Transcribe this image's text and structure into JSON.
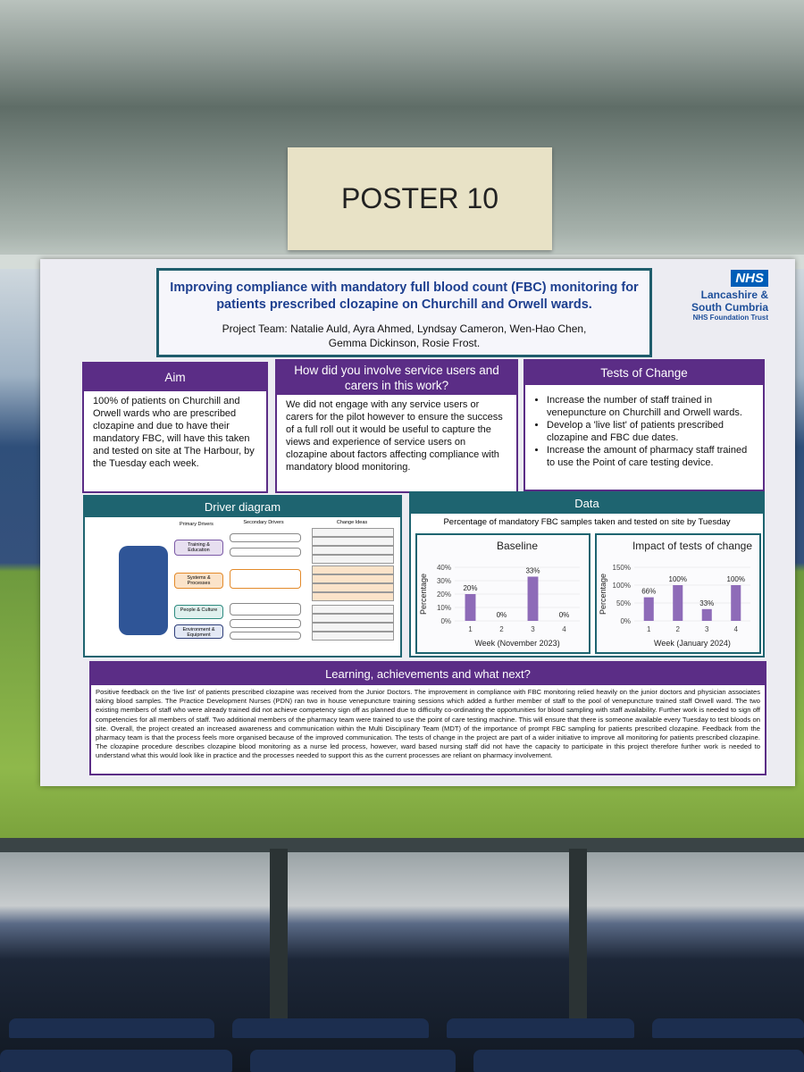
{
  "sign": "POSTER 10",
  "poster": {
    "title": "Improving compliance with mandatory full blood count (FBC) monitoring for patients prescribed clozapine on Churchill and Orwell wards.",
    "team": "Project Team: Natalie Auld, Ayra Ahmed, Lyndsay Cameron, Wen-Hao Chen, Gemma Dickinson, Rosie Frost.",
    "logo": {
      "mark": "NHS",
      "org": "Lancashire & South Cumbria",
      "trust": "NHS Foundation Trust"
    },
    "aim": {
      "heading": "Aim",
      "text": "100% of patients on Churchill and Orwell wards who are prescribed clozapine and due to have their mandatory FBC, will have this taken and tested on site at The Harbour, by the Tuesday each week."
    },
    "involvement": {
      "heading": "How did you involve service users and carers in this work?",
      "text": "We did not engage with any service users or carers for the pilot however to ensure the success of a full roll out it would be useful to capture the views and experience of service users on clozapine about factors affecting compliance with mandatory blood monitoring."
    },
    "tests": {
      "heading": "Tests of Change",
      "items": [
        "Increase the number of staff trained in venepuncture on Churchill and Orwell wards.",
        "Develop a 'live list' of patients prescribed clozapine and FBC due dates.",
        "Increase the amount of pharmacy staff trained to use the Point of care testing device."
      ]
    },
    "driver": {
      "heading": "Driver diagram",
      "primary_header": "Primary Drivers",
      "secondary_header": "Secondary Drivers",
      "change_header": "Change Ideas",
      "primary": [
        "Training & Education",
        "Systems & Processes",
        "People & Culture",
        "Environment & Equipment"
      ]
    },
    "data": {
      "heading": "Data",
      "caption": "Percentage of mandatory FBC samples taken and tested on site by Tuesday"
    },
    "learning": {
      "heading": "Learning, achievements and what next?",
      "text": "Positive feedback on the 'live list' of patients prescribed clozapine was received from the Junior Doctors. The improvement in compliance with FBC monitoring relied heavily on the junior doctors and physician associates taking blood samples. The Practice Development Nurses (PDN) ran two in house venepuncture training sessions which added a further member of staff to the pool of venepuncture trained staff Orwell ward. The two existing members of staff who were already trained did not achieve competency sign off as planned due to difficulty co-ordinating the opportunities for blood sampling with staff availability. Further work is needed to sign off competencies for all members of staff.  Two additional members of the pharmacy team were trained to use the point of care testing machine. This will ensure that there is someone available every Tuesday to test bloods on site.  Overall, the project created an increased awareness and communication within the Multi Disciplinary Team (MDT) of the importance of prompt FBC sampling for patients prescribed clozapine. Feedback from the pharmacy team is that the process feels more organised because of the improved communication. The tests of change in the project are part of a wider initiative to improve all monitoring for patients prescribed clozapine. The clozapine procedure describes clozapine blood monitoring as a nurse led process, however, ward based nursing staff did not have the capacity to participate in this project therefore further work is needed to understand what this would look like in practice and the processes needed to support this as the current processes are reliant on pharmacy involvement."
    }
  },
  "chart_data": [
    {
      "type": "bar",
      "title": "Baseline",
      "xlabel": "Week (November 2023)",
      "ylabel": "Percentage",
      "categories": [
        "1",
        "2",
        "3",
        "4"
      ],
      "values": [
        20,
        0,
        33,
        0
      ],
      "value_labels": [
        "20%",
        "0%",
        "33%",
        "0%"
      ],
      "color": "#8e6bb8",
      "ylim": [
        0,
        40
      ],
      "yticks": [
        {
          "value": 0,
          "label": "0%"
        },
        {
          "value": 10,
          "label": "10%"
        },
        {
          "value": 20,
          "label": "20%"
        },
        {
          "value": 30,
          "label": "30%"
        },
        {
          "value": 40,
          "label": "40%"
        }
      ]
    },
    {
      "type": "bar",
      "title": "Impact of tests of change",
      "xlabel": "Week (January 2024)",
      "ylabel": "Percentage",
      "categories": [
        "1",
        "2",
        "3",
        "4"
      ],
      "values": [
        66,
        100,
        33,
        100
      ],
      "value_labels": [
        "66%",
        "100%",
        "33%",
        "100%"
      ],
      "color": "#8e6bb8",
      "ylim": [
        0,
        150
      ],
      "yticks": [
        {
          "value": 0,
          "label": "0%"
        },
        {
          "value": 50,
          "label": "50%"
        },
        {
          "value": 100,
          "label": "100%"
        },
        {
          "value": 150,
          "label": "150%"
        }
      ]
    }
  ]
}
